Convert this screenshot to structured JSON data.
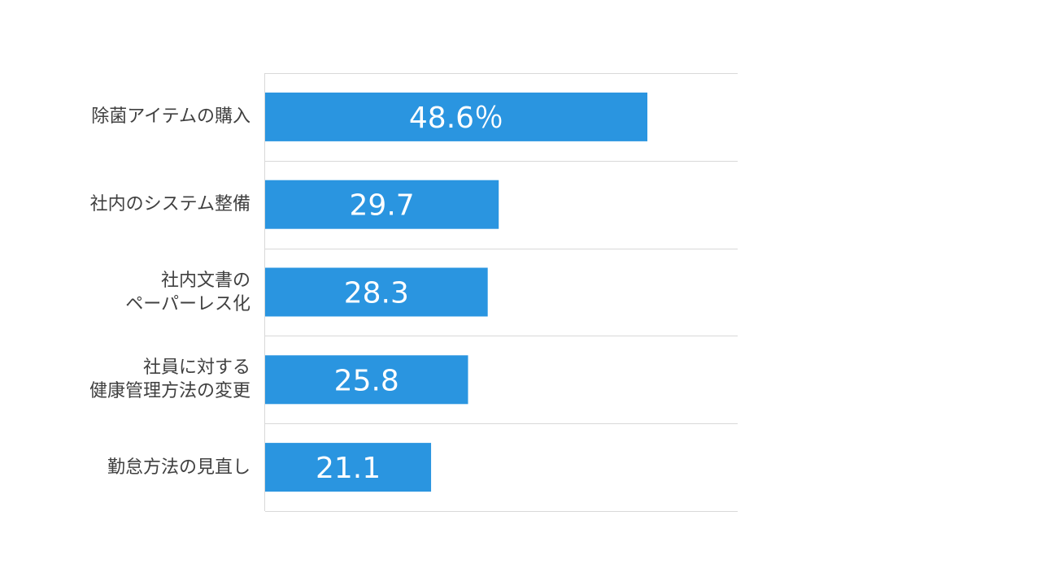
{
  "chart_data": {
    "type": "bar",
    "orientation": "horizontal",
    "categories": [
      "除菌アイテムの購入",
      "社内のシステム整備",
      "社内文書の\nペーパーレス化",
      "社員に対する\n健康管理方法の変更",
      "勤怠方法の見直し"
    ],
    "values": [
      48.6,
      29.7,
      28.3,
      25.8,
      21.1
    ],
    "data_labels": [
      "48.6％",
      "29.7",
      "28.3",
      "25.8",
      "21.1"
    ],
    "xlim": [
      0,
      60
    ],
    "grid": true,
    "bar_color": "#2a95e0",
    "label_color": "#ffffff",
    "grid_color": "#d9d9d9"
  }
}
